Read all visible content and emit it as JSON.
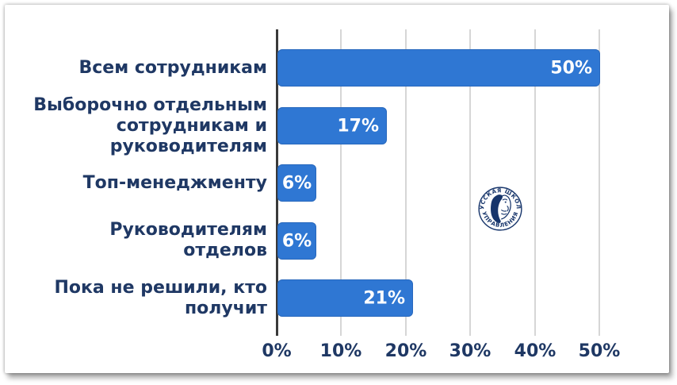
{
  "chart_data": {
    "type": "bar",
    "orientation": "horizontal",
    "categories": [
      "Всем сотрудникам",
      "Выборочно отдельным сотрудникам и руководителям",
      "Топ-менеджменту",
      "Руководителям отделов",
      "Пока не решили, кто получит"
    ],
    "values": [
      50,
      17,
      6,
      6,
      21
    ],
    "rows": [
      {
        "label": "Всем сотрудникам",
        "value": 50,
        "value_label": "50%"
      },
      {
        "label": "Выборочно отдельным\nсотрудникам и\nруководителям",
        "value": 17,
        "value_label": "17%"
      },
      {
        "label": "Топ-менеджменту",
        "value": 6,
        "value_label": "6%"
      },
      {
        "label": "Руководителям\nотделов",
        "value": 6,
        "value_label": "6%"
      },
      {
        "label": "Пока не решили, кто\nполучит",
        "value": 21,
        "value_label": "21%"
      }
    ],
    "x_ticks": [
      "0%",
      "10%",
      "20%",
      "30%",
      "40%",
      "50%"
    ],
    "xlim": [
      0,
      50
    ],
    "grid": true,
    "legend": false,
    "colors": {
      "bar": "#2f77d3",
      "category_label": "#1f3864",
      "value_label": "#ffffff",
      "tick_label": "#1f3864",
      "gridline": "#d6d6d6",
      "axis_line": "#3a3a3a"
    }
  },
  "watermark": {
    "text_top": "· РУССКАЯ ШКОЛА ·",
    "text_bottom": "УПРАВЛЕНИЯ",
    "color": "#17356b"
  }
}
